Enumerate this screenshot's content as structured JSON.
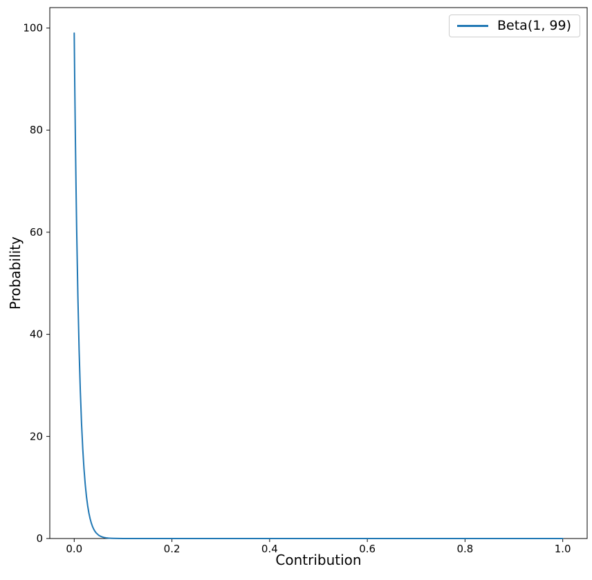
{
  "chart_data": {
    "type": "line",
    "title": "",
    "xlabel": "Contribution",
    "ylabel": "Probability",
    "xlim": [
      -0.05,
      1.05
    ],
    "ylim": [
      0,
      104
    ],
    "grid": false,
    "axis_color": "#000000",
    "xticks": {
      "values": [
        0.0,
        0.2,
        0.4,
        0.6,
        0.8,
        1.0
      ],
      "labels": [
        "0.0",
        "0.2",
        "0.4",
        "0.6",
        "0.8",
        "1.0"
      ]
    },
    "yticks": {
      "values": [
        0,
        20,
        40,
        60,
        80,
        100
      ],
      "labels": [
        "0",
        "20",
        "40",
        "60",
        "80",
        "100"
      ]
    },
    "legend": {
      "position": "upper right",
      "entries": [
        {
          "label": "Beta(1, 99)",
          "color": "#1f77b4"
        }
      ]
    },
    "series": [
      {
        "name": "Beta(1, 99)",
        "color": "#1f77b4",
        "points": [
          [
            0.0,
            99.0
          ],
          [
            0.00125,
            87.58
          ],
          [
            0.0025,
            77.46
          ],
          [
            0.00375,
            68.51
          ],
          [
            0.005,
            60.58
          ],
          [
            0.0075,
            47.34
          ],
          [
            0.01,
            36.97
          ],
          [
            0.0125,
            28.86
          ],
          [
            0.015,
            22.51
          ],
          [
            0.0175,
            17.55
          ],
          [
            0.02,
            13.67
          ],
          [
            0.0225,
            10.65
          ],
          [
            0.025,
            8.28
          ],
          [
            0.0275,
            6.44
          ],
          [
            0.03,
            5.0
          ],
          [
            0.0325,
            3.89
          ],
          [
            0.035,
            3.01
          ],
          [
            0.0375,
            2.34
          ],
          [
            0.04,
            1.81
          ],
          [
            0.0425,
            1.41
          ],
          [
            0.045,
            1.09
          ],
          [
            0.05,
            0.65
          ],
          [
            0.055,
            0.39
          ],
          [
            0.06,
            0.23
          ],
          [
            0.065,
            0.14
          ],
          [
            0.07,
            0.08
          ],
          [
            0.075,
            0.05
          ],
          [
            0.08,
            0.03
          ],
          [
            0.09,
            0.01
          ],
          [
            0.1,
            0.003
          ],
          [
            0.12,
            0.0
          ],
          [
            0.15,
            0.0
          ],
          [
            0.2,
            0.0
          ],
          [
            0.3,
            0.0
          ],
          [
            0.4,
            0.0
          ],
          [
            0.5,
            0.0
          ],
          [
            0.6,
            0.0
          ],
          [
            0.7,
            0.0
          ],
          [
            0.8,
            0.0
          ],
          [
            0.9,
            0.0
          ],
          [
            1.0,
            0.0
          ]
        ]
      }
    ]
  }
}
